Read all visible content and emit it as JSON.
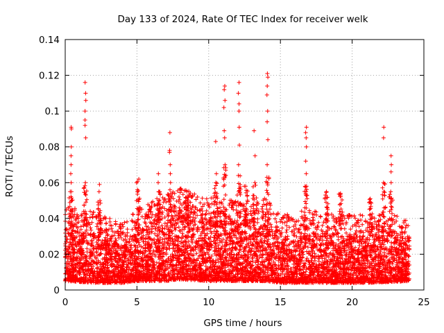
{
  "chart_data": {
    "type": "scatter",
    "title": "Day 133 of 2024, Rate Of TEC Index for receiver welk",
    "xlabel": "GPS time / hours",
    "ylabel": "ROTI / TECUs",
    "xlim": [
      0,
      25
    ],
    "ylim": [
      0,
      0.14
    ],
    "x_ticks": [
      0,
      5,
      10,
      15,
      20,
      25
    ],
    "y_ticks": [
      0,
      0.02,
      0.04,
      0.06,
      0.08,
      0.1,
      0.12,
      0.14
    ],
    "x_tick_labels": [
      "0",
      "5",
      "10",
      "15",
      "20",
      "25"
    ],
    "y_tick_labels": [
      "0",
      "0.02",
      "0.04",
      "0.06",
      "0.08",
      "0.1",
      "0.12",
      "0.14"
    ],
    "grid": true,
    "marker": "+",
    "marker_color": "#ff0000",
    "series": [
      {
        "name": "ROTI",
        "note": "dense cloud of points, approx. 0.005-0.04 TECU/s from 0 to 24 h",
        "background_envelope": [
          {
            "x": 0,
            "low": 0.005,
            "high": 0.035
          },
          {
            "x": 2,
            "low": 0.004,
            "high": 0.032
          },
          {
            "x": 4,
            "low": 0.004,
            "high": 0.025
          },
          {
            "x": 5,
            "low": 0.005,
            "high": 0.033
          },
          {
            "x": 7,
            "low": 0.005,
            "high": 0.042
          },
          {
            "x": 8,
            "low": 0.006,
            "high": 0.045
          },
          {
            "x": 10,
            "low": 0.005,
            "high": 0.04
          },
          {
            "x": 12,
            "low": 0.005,
            "high": 0.038
          },
          {
            "x": 14,
            "low": 0.005,
            "high": 0.04
          },
          {
            "x": 15,
            "low": 0.004,
            "high": 0.03
          },
          {
            "x": 17,
            "low": 0.004,
            "high": 0.033
          },
          {
            "x": 19,
            "low": 0.004,
            "high": 0.03
          },
          {
            "x": 21,
            "low": 0.004,
            "high": 0.03
          },
          {
            "x": 24,
            "low": 0.005,
            "high": 0.03
          }
        ],
        "peaks": [
          {
            "x": 0.4,
            "values": [
              0.091,
              0.09,
              0.08,
              0.075,
              0.07,
              0.065,
              0.06,
              0.055
            ]
          },
          {
            "x": 1.4,
            "values": [
              0.116,
              0.11,
              0.106,
              0.1,
              0.095,
              0.092,
              0.085,
              0.06
            ]
          },
          {
            "x": 2.4,
            "values": [
              0.059,
              0.055,
              0.05
            ]
          },
          {
            "x": 5.1,
            "values": [
              0.062
            ]
          },
          {
            "x": 6.5,
            "values": [
              0.065,
              0.06,
              0.055
            ]
          },
          {
            "x": 7.3,
            "values": [
              0.088,
              0.078,
              0.077,
              0.07,
              0.065,
              0.06,
              0.056
            ]
          },
          {
            "x": 8.5,
            "values": [
              0.055,
              0.052
            ]
          },
          {
            "x": 10.5,
            "values": [
              0.083,
              0.065,
              0.06
            ]
          },
          {
            "x": 11.1,
            "values": [
              0.114,
              0.112,
              0.106,
              0.102,
              0.089,
              0.085,
              0.07
            ]
          },
          {
            "x": 12.1,
            "values": [
              0.116,
              0.11,
              0.104,
              0.1,
              0.091,
              0.081,
              0.07,
              0.064
            ]
          },
          {
            "x": 12.6,
            "values": [
              0.058
            ]
          },
          {
            "x": 13.2,
            "values": [
              0.089,
              0.075,
              0.06
            ]
          },
          {
            "x": 14.1,
            "values": [
              0.121,
              0.119,
              0.114,
              0.109,
              0.1,
              0.094,
              0.084,
              0.07,
              0.063
            ]
          },
          {
            "x": 16.8,
            "values": [
              0.091,
              0.088,
              0.085,
              0.08,
              0.072,
              0.065,
              0.058
            ]
          },
          {
            "x": 18.2,
            "values": [
              0.055
            ]
          },
          {
            "x": 19.2,
            "values": [
              0.054
            ]
          },
          {
            "x": 21.3,
            "values": [
              0.051
            ]
          },
          {
            "x": 22.2,
            "values": [
              0.091,
              0.085,
              0.06
            ]
          },
          {
            "x": 22.7,
            "values": [
              0.075,
              0.07,
              0.066,
              0.06,
              0.055
            ]
          }
        ]
      }
    ]
  }
}
